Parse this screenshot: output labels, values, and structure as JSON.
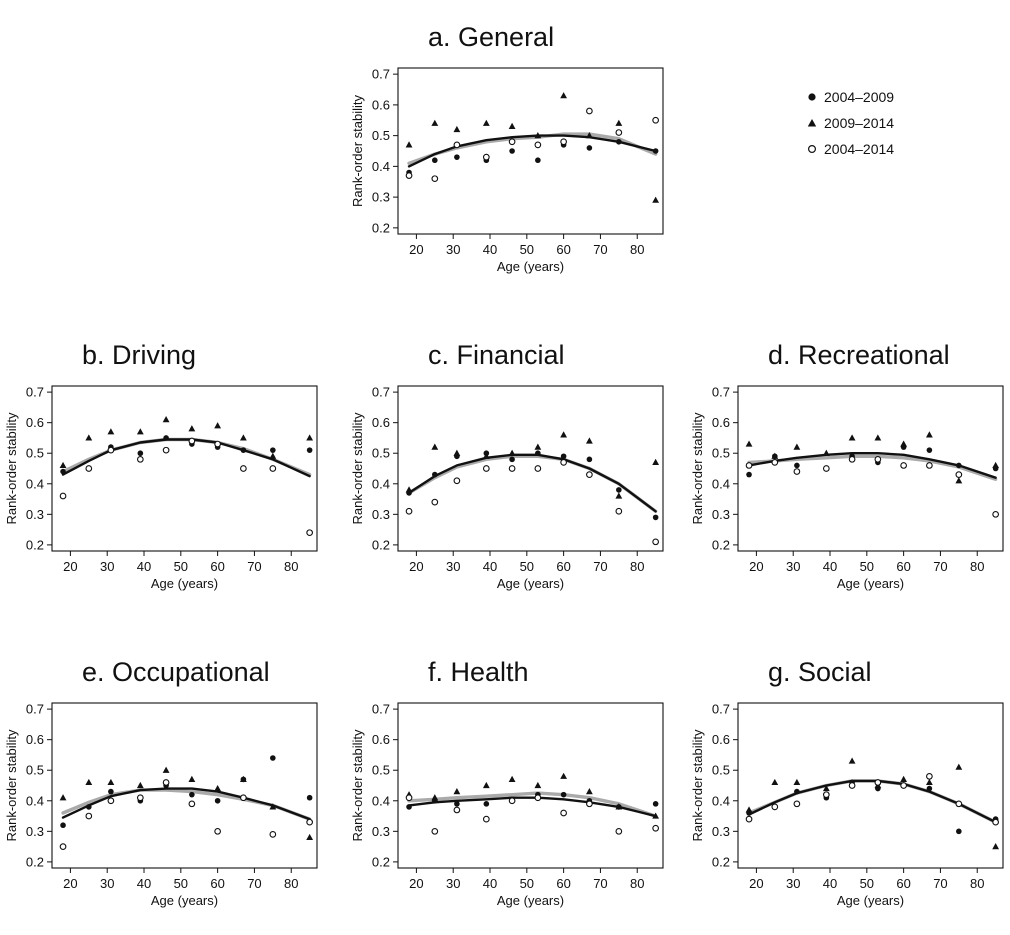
{
  "legend": {
    "entries": [
      {
        "label": "2004–2009",
        "marker": "filled-circle"
      },
      {
        "label": "2009–2014",
        "marker": "filled-triangle"
      },
      {
        "label": "2004–2014",
        "marker": "open-circle"
      }
    ]
  },
  "colors": {
    "marker": "#111111",
    "fit_black": "#111111",
    "fit_gray": "#aaaaaa"
  },
  "chart_data": [
    {
      "type": "scatter",
      "title": "a. General",
      "xlabel": "Age (years)",
      "ylabel": "Rank-order stability",
      "xlim": [
        15,
        87
      ],
      "ylim": [
        0.18,
        0.72
      ],
      "xticks": [
        20,
        30,
        40,
        50,
        60,
        70,
        80
      ],
      "yticks": [
        0.2,
        0.3,
        0.4,
        0.5,
        0.6,
        0.7
      ],
      "x": [
        18,
        25,
        31,
        39,
        46,
        53,
        60,
        67,
        75,
        85
      ],
      "series": [
        {
          "name": "2004–2009",
          "marker": "filled-circle",
          "values": [
            0.38,
            0.42,
            0.43,
            0.42,
            0.45,
            0.42,
            0.47,
            0.46,
            0.48,
            0.45
          ]
        },
        {
          "name": "2009–2014",
          "marker": "filled-triangle",
          "values": [
            0.47,
            0.54,
            0.52,
            0.54,
            0.53,
            0.5,
            0.63,
            0.5,
            0.54,
            0.29
          ]
        },
        {
          "name": "2004–2014",
          "marker": "open-circle",
          "values": [
            0.37,
            0.36,
            0.47,
            0.43,
            0.48,
            0.47,
            0.48,
            0.58,
            0.51,
            0.55
          ]
        }
      ],
      "fits": [
        {
          "color": "fit_gray",
          "x": [
            18,
            25,
            31,
            39,
            46,
            53,
            60,
            67,
            75,
            85
          ],
          "y": [
            0.41,
            0.44,
            0.46,
            0.48,
            0.49,
            0.495,
            0.505,
            0.505,
            0.49,
            0.44
          ]
        },
        {
          "color": "fit_black",
          "x": [
            18,
            25,
            31,
            39,
            46,
            53,
            60,
            67,
            75,
            85
          ],
          "y": [
            0.4,
            0.44,
            0.465,
            0.485,
            0.495,
            0.5,
            0.5,
            0.495,
            0.48,
            0.45
          ]
        }
      ]
    },
    {
      "type": "scatter",
      "title": "b. Driving",
      "xlabel": "Age (years)",
      "ylabel": "Rank-order stability",
      "xlim": [
        15,
        87
      ],
      "ylim": [
        0.18,
        0.72
      ],
      "xticks": [
        20,
        30,
        40,
        50,
        60,
        70,
        80
      ],
      "yticks": [
        0.2,
        0.3,
        0.4,
        0.5,
        0.6,
        0.7
      ],
      "x": [
        18,
        25,
        31,
        39,
        46,
        53,
        60,
        67,
        75,
        85
      ],
      "series": [
        {
          "name": "2004–2009",
          "marker": "filled-circle",
          "values": [
            0.44,
            0.45,
            0.52,
            0.5,
            0.55,
            0.53,
            0.52,
            0.51,
            0.51,
            0.51
          ]
        },
        {
          "name": "2009–2014",
          "marker": "filled-triangle",
          "values": [
            0.46,
            0.55,
            0.57,
            0.57,
            0.61,
            0.58,
            0.59,
            0.55,
            0.49,
            0.55
          ]
        },
        {
          "name": "2004–2014",
          "marker": "open-circle",
          "values": [
            0.36,
            0.45,
            0.51,
            0.48,
            0.51,
            0.54,
            0.53,
            0.45,
            0.45,
            0.24
          ]
        }
      ],
      "fits": [
        {
          "color": "fit_gray",
          "x": [
            18,
            25,
            31,
            39,
            46,
            53,
            60,
            67,
            75,
            85
          ],
          "y": [
            0.44,
            0.48,
            0.51,
            0.535,
            0.545,
            0.545,
            0.535,
            0.515,
            0.48,
            0.43
          ]
        },
        {
          "color": "fit_black",
          "x": [
            18,
            25,
            31,
            39,
            46,
            53,
            60,
            67,
            75,
            85
          ],
          "y": [
            0.43,
            0.475,
            0.51,
            0.535,
            0.545,
            0.545,
            0.535,
            0.51,
            0.48,
            0.425
          ]
        }
      ]
    },
    {
      "type": "scatter",
      "title": "c. Financial",
      "xlabel": "Age (years)",
      "ylabel": "Rank-order stability",
      "xlim": [
        15,
        87
      ],
      "ylim": [
        0.18,
        0.72
      ],
      "xticks": [
        20,
        30,
        40,
        50,
        60,
        70,
        80
      ],
      "yticks": [
        0.2,
        0.3,
        0.4,
        0.5,
        0.6,
        0.7
      ],
      "x": [
        18,
        25,
        31,
        39,
        46,
        53,
        60,
        67,
        75,
        85
      ],
      "series": [
        {
          "name": "2004–2009",
          "marker": "filled-circle",
          "values": [
            0.37,
            0.43,
            0.49,
            0.5,
            0.48,
            0.5,
            0.49,
            0.48,
            0.38,
            0.29
          ]
        },
        {
          "name": "2009–2014",
          "marker": "filled-triangle",
          "values": [
            0.38,
            0.52,
            0.5,
            0.49,
            0.5,
            0.52,
            0.56,
            0.54,
            0.36,
            0.47
          ]
        },
        {
          "name": "2004–2014",
          "marker": "open-circle",
          "values": [
            0.31,
            0.34,
            0.41,
            0.45,
            0.45,
            0.45,
            0.47,
            0.43,
            0.31,
            0.21
          ]
        }
      ],
      "fits": [
        {
          "color": "fit_gray",
          "x": [
            18,
            25,
            31,
            39,
            46,
            53,
            60,
            67,
            75,
            85
          ],
          "y": [
            0.37,
            0.42,
            0.455,
            0.48,
            0.49,
            0.49,
            0.48,
            0.45,
            0.4,
            0.31
          ]
        },
        {
          "color": "fit_black",
          "x": [
            18,
            25,
            31,
            39,
            46,
            53,
            60,
            67,
            75,
            85
          ],
          "y": [
            0.37,
            0.425,
            0.46,
            0.485,
            0.495,
            0.495,
            0.48,
            0.45,
            0.4,
            0.31
          ]
        }
      ]
    },
    {
      "type": "scatter",
      "title": "d. Recreational",
      "xlabel": "Age (years)",
      "ylabel": "Rank-order stability",
      "xlim": [
        15,
        87
      ],
      "ylim": [
        0.18,
        0.72
      ],
      "xticks": [
        20,
        30,
        40,
        50,
        60,
        70,
        80
      ],
      "yticks": [
        0.2,
        0.3,
        0.4,
        0.5,
        0.6,
        0.7
      ],
      "x": [
        18,
        25,
        31,
        39,
        46,
        53,
        60,
        67,
        75,
        85
      ],
      "series": [
        {
          "name": "2004–2009",
          "marker": "filled-circle",
          "values": [
            0.43,
            0.49,
            0.46,
            0.45,
            0.49,
            0.47,
            0.52,
            0.51,
            0.46,
            0.45
          ]
        },
        {
          "name": "2009–2014",
          "marker": "filled-triangle",
          "values": [
            0.53,
            0.49,
            0.52,
            0.5,
            0.55,
            0.55,
            0.53,
            0.56,
            0.41,
            0.46
          ]
        },
        {
          "name": "2004–2014",
          "marker": "open-circle",
          "values": [
            0.46,
            0.47,
            0.44,
            0.45,
            0.48,
            0.48,
            0.46,
            0.46,
            0.43,
            0.3
          ]
        }
      ],
      "fits": [
        {
          "color": "fit_gray",
          "x": [
            18,
            25,
            31,
            39,
            46,
            53,
            60,
            67,
            75,
            85
          ],
          "y": [
            0.47,
            0.475,
            0.48,
            0.485,
            0.49,
            0.49,
            0.485,
            0.475,
            0.455,
            0.415
          ]
        },
        {
          "color": "fit_black",
          "x": [
            18,
            25,
            31,
            39,
            46,
            53,
            60,
            67,
            75,
            85
          ],
          "y": [
            0.46,
            0.475,
            0.485,
            0.495,
            0.5,
            0.5,
            0.495,
            0.48,
            0.46,
            0.42
          ]
        }
      ]
    },
    {
      "type": "scatter",
      "title": "e. Occupational",
      "xlabel": "Age (years)",
      "ylabel": "Rank-order stability",
      "xlim": [
        15,
        87
      ],
      "ylim": [
        0.18,
        0.72
      ],
      "xticks": [
        20,
        30,
        40,
        50,
        60,
        70,
        80
      ],
      "yticks": [
        0.2,
        0.3,
        0.4,
        0.5,
        0.6,
        0.7
      ],
      "x": [
        18,
        25,
        31,
        39,
        46,
        53,
        60,
        67,
        75,
        85
      ],
      "series": [
        {
          "name": "2004–2009",
          "marker": "filled-circle",
          "values": [
            0.32,
            0.38,
            0.43,
            0.4,
            0.45,
            0.42,
            0.4,
            0.47,
            0.54,
            0.41
          ]
        },
        {
          "name": "2009–2014",
          "marker": "filled-triangle",
          "values": [
            0.41,
            0.46,
            0.46,
            0.45,
            0.5,
            0.47,
            0.44,
            0.47,
            0.38,
            0.28
          ]
        },
        {
          "name": "2004–2014",
          "marker": "open-circle",
          "values": [
            0.25,
            0.35,
            0.4,
            0.41,
            0.46,
            0.39,
            0.3,
            0.41,
            0.29,
            0.33
          ]
        }
      ],
      "fits": [
        {
          "color": "fit_gray",
          "x": [
            18,
            25,
            31,
            39,
            46,
            53,
            60,
            67,
            75,
            85
          ],
          "y": [
            0.36,
            0.395,
            0.42,
            0.435,
            0.435,
            0.43,
            0.42,
            0.405,
            0.385,
            0.34
          ]
        },
        {
          "color": "fit_black",
          "x": [
            18,
            25,
            31,
            39,
            46,
            53,
            60,
            67,
            75,
            85
          ],
          "y": [
            0.345,
            0.385,
            0.415,
            0.435,
            0.44,
            0.44,
            0.43,
            0.41,
            0.385,
            0.34
          ]
        }
      ]
    },
    {
      "type": "scatter",
      "title": "f. Health",
      "xlabel": "Age (years)",
      "ylabel": "Rank-order stability",
      "xlim": [
        15,
        87
      ],
      "ylim": [
        0.18,
        0.72
      ],
      "xticks": [
        20,
        30,
        40,
        50,
        60,
        70,
        80
      ],
      "yticks": [
        0.2,
        0.3,
        0.4,
        0.5,
        0.6,
        0.7
      ],
      "x": [
        18,
        25,
        31,
        39,
        46,
        53,
        60,
        67,
        75,
        85
      ],
      "series": [
        {
          "name": "2004–2009",
          "marker": "filled-circle",
          "values": [
            0.38,
            0.4,
            0.39,
            0.39,
            0.4,
            0.42,
            0.42,
            0.4,
            0.38,
            0.39
          ]
        },
        {
          "name": "2009–2014",
          "marker": "filled-triangle",
          "values": [
            0.42,
            0.41,
            0.43,
            0.45,
            0.47,
            0.45,
            0.48,
            0.43,
            0.38,
            0.35
          ]
        },
        {
          "name": "2004–2014",
          "marker": "open-circle",
          "values": [
            0.41,
            0.3,
            0.37,
            0.34,
            0.4,
            0.41,
            0.36,
            0.39,
            0.3,
            0.31
          ]
        }
      ],
      "fits": [
        {
          "color": "fit_gray",
          "x": [
            18,
            25,
            31,
            39,
            46,
            53,
            60,
            67,
            75,
            85
          ],
          "y": [
            0.4,
            0.405,
            0.41,
            0.415,
            0.42,
            0.425,
            0.42,
            0.41,
            0.39,
            0.35
          ]
        },
        {
          "color": "fit_black",
          "x": [
            18,
            25,
            31,
            39,
            46,
            53,
            60,
            67,
            75,
            85
          ],
          "y": [
            0.385,
            0.395,
            0.4,
            0.405,
            0.41,
            0.41,
            0.405,
            0.395,
            0.38,
            0.35
          ]
        }
      ]
    },
    {
      "type": "scatter",
      "title": "g. Social",
      "xlabel": "Age (years)",
      "ylabel": "Rank-order stability",
      "xlim": [
        15,
        87
      ],
      "ylim": [
        0.18,
        0.72
      ],
      "xticks": [
        20,
        30,
        40,
        50,
        60,
        70,
        80
      ],
      "yticks": [
        0.2,
        0.3,
        0.4,
        0.5,
        0.6,
        0.7
      ],
      "x": [
        18,
        25,
        31,
        39,
        46,
        53,
        60,
        67,
        75,
        85
      ],
      "series": [
        {
          "name": "2004–2009",
          "marker": "filled-circle",
          "values": [
            0.36,
            0.38,
            0.43,
            0.41,
            0.46,
            0.44,
            0.45,
            0.44,
            0.3,
            0.34
          ]
        },
        {
          "name": "2009–2014",
          "marker": "filled-triangle",
          "values": [
            0.37,
            0.46,
            0.46,
            0.44,
            0.53,
            0.45,
            0.47,
            0.46,
            0.51,
            0.25
          ]
        },
        {
          "name": "2004–2014",
          "marker": "open-circle",
          "values": [
            0.34,
            0.38,
            0.39,
            0.42,
            0.45,
            0.46,
            0.45,
            0.48,
            0.39,
            0.33
          ]
        }
      ],
      "fits": [
        {
          "color": "fit_gray",
          "x": [
            18,
            25,
            31,
            39,
            46,
            53,
            60,
            67,
            75,
            85
          ],
          "y": [
            0.36,
            0.395,
            0.425,
            0.45,
            0.465,
            0.465,
            0.455,
            0.43,
            0.39,
            0.33
          ]
        },
        {
          "color": "fit_black",
          "x": [
            18,
            25,
            31,
            39,
            46,
            53,
            60,
            67,
            75,
            85
          ],
          "y": [
            0.355,
            0.395,
            0.425,
            0.45,
            0.465,
            0.465,
            0.455,
            0.43,
            0.39,
            0.33
          ]
        }
      ]
    }
  ]
}
